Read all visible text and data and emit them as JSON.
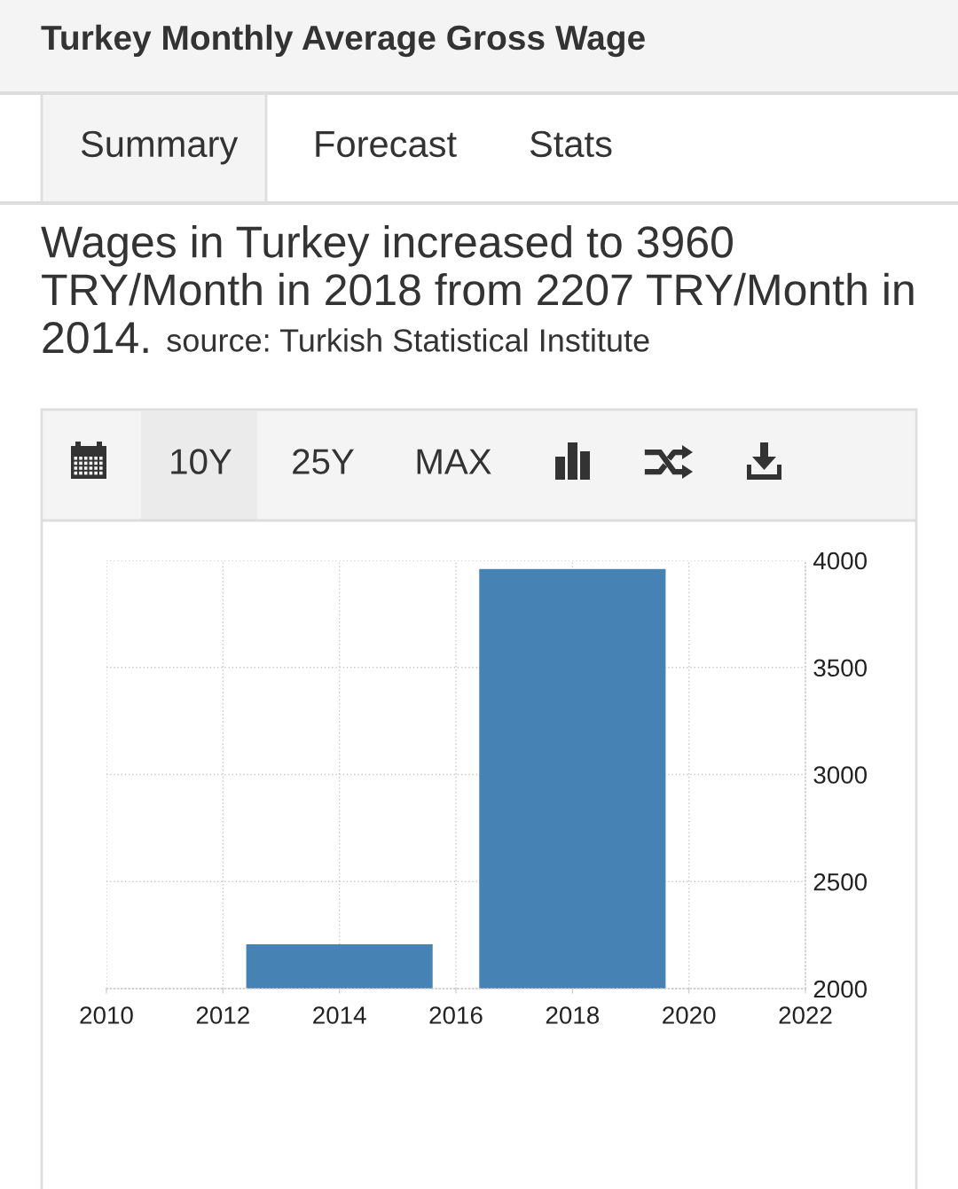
{
  "chart_data": {
    "type": "bar",
    "title": "Turkey Monthly Average Gross Wage",
    "subtitle": "Wages in Turkey increased to 3960 TRY/Month in 2018 from 2207 TRY/Month in 2014.",
    "annotations": [
      "source: Turkish Statistical Institute",
      "Summary",
      "Forecast",
      "Stats",
      "10Y",
      "25Y",
      "MAX"
    ],
    "x": [
      2014,
      2018
    ],
    "values": [
      2207,
      3960
    ],
    "color": "#4682b4",
    "xlim": [
      2010,
      2022
    ],
    "xticks": [
      2010,
      2012,
      2014,
      2016,
      2018,
      2020,
      2022
    ],
    "ylim": [
      2000,
      4000
    ],
    "yticks": [
      2000,
      2500,
      3000,
      3500,
      4000
    ],
    "grid": true
  }
}
